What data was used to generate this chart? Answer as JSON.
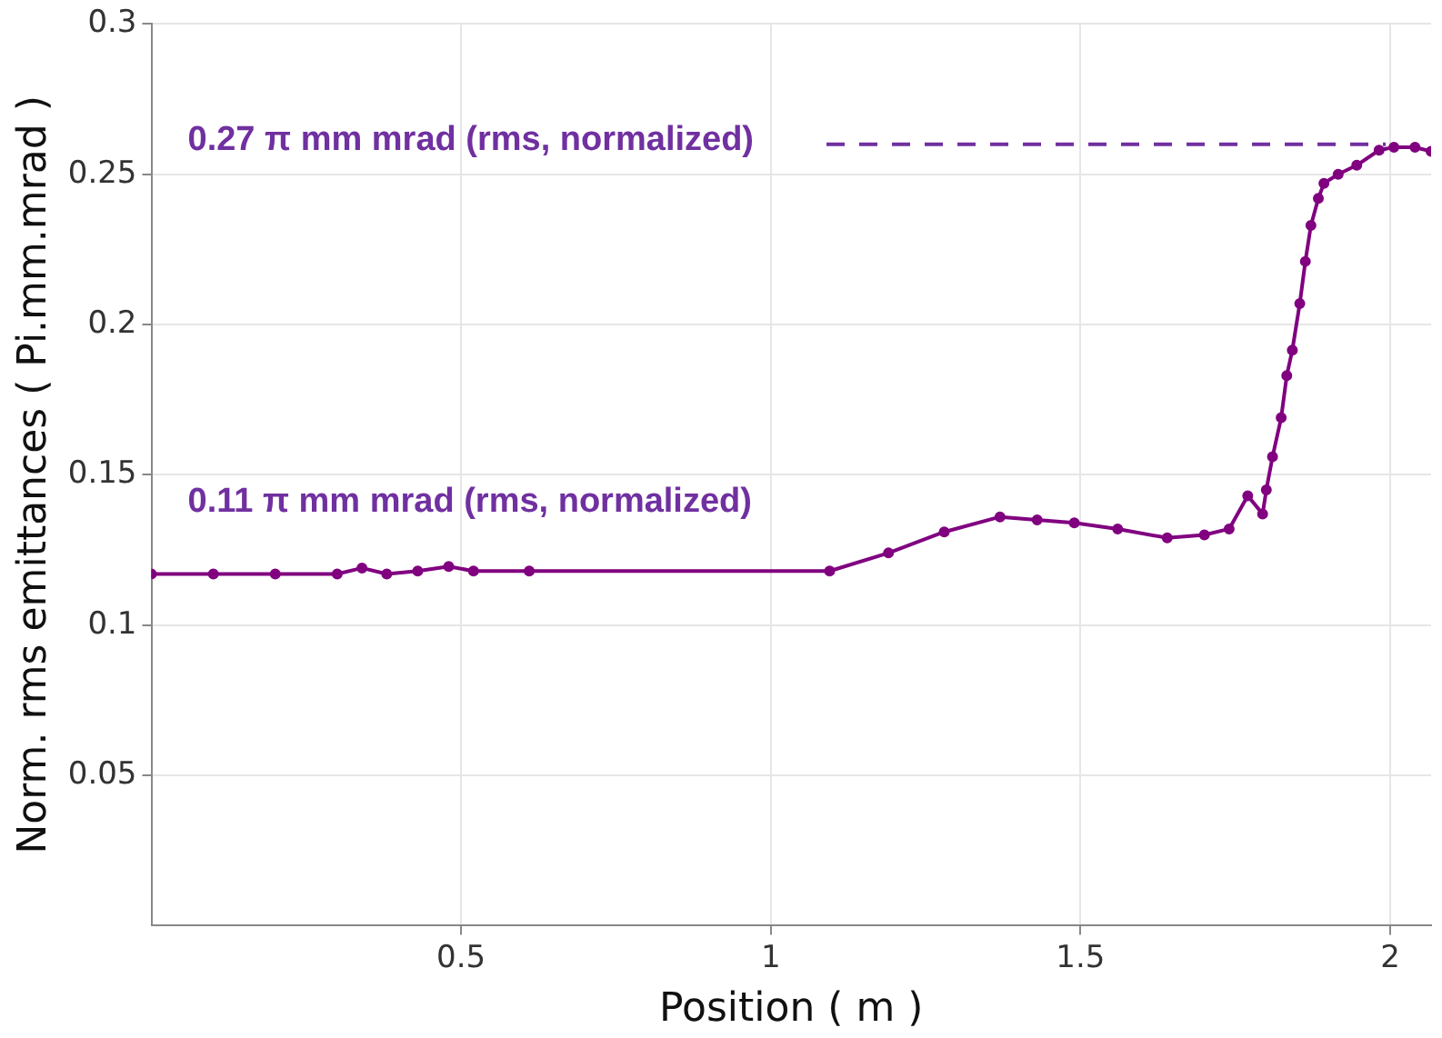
{
  "chart_data": {
    "type": "line",
    "xlabel": "Position ( m )",
    "ylabel": "Norm. rms emittances ( Pi.mm.mrad )",
    "xlim": [
      0,
      2.066
    ],
    "ylim": [
      0,
      0.3
    ],
    "xticks": [
      0.5,
      1,
      1.5,
      2
    ],
    "yticks": [
      0.05,
      0.1,
      0.15,
      0.2,
      0.25,
      0.3
    ],
    "grid": true,
    "legend": false,
    "marker": "circle",
    "line_style": "solid",
    "series": [
      {
        "color": "#800080",
        "x": [
          0,
          0.1,
          0.2,
          0.3,
          0.34,
          0.38,
          0.43,
          0.48,
          0.52,
          0.61,
          1.095,
          1.19,
          1.28,
          1.37,
          1.43,
          1.49,
          1.56,
          1.64,
          1.7,
          1.74,
          1.77,
          1.794,
          1.8,
          1.81,
          1.824,
          1.833,
          1.842,
          1.854,
          1.863,
          1.872,
          1.884,
          1.893,
          1.916,
          1.946,
          1.982,
          2.006,
          2.04,
          2.066
        ],
        "values": [
          0.117,
          0.117,
          0.117,
          0.117,
          0.119,
          0.117,
          0.118,
          0.1195,
          0.118,
          0.118,
          0.118,
          0.124,
          0.131,
          0.136,
          0.135,
          0.134,
          0.132,
          0.129,
          0.13,
          0.132,
          0.143,
          0.137,
          0.145,
          0.156,
          0.169,
          0.183,
          0.1915,
          0.207,
          0.221,
          0.233,
          0.242,
          0.247,
          0.25,
          0.253,
          0.258,
          0.259,
          0.259,
          0.2576
        ]
      }
    ],
    "ref_lines": [
      {
        "axis": "y",
        "value": 0.26,
        "label": "0.27 π mm mrad (rms, normalized)",
        "color": "#7030a0",
        "line_style": "dashed"
      }
    ],
    "annotations": [
      "0.11 π mm mrad (rms, normalized)"
    ]
  }
}
